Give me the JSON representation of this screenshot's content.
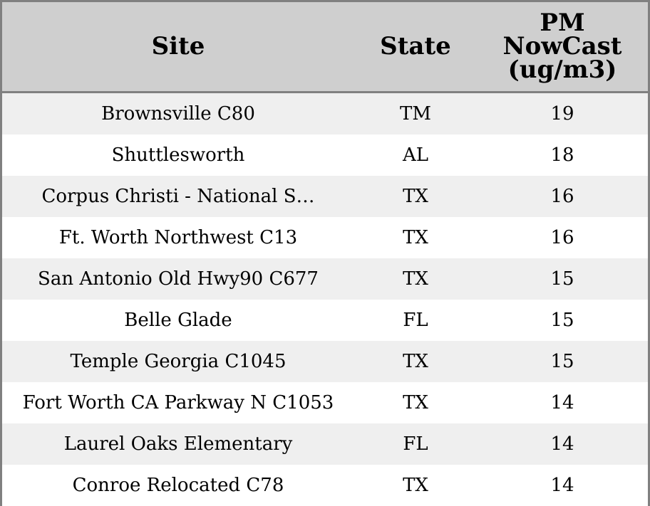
{
  "chart_data": {
    "type": "table",
    "columns": [
      "Site",
      "State",
      "PM\nNowCast\n(ug/m3)"
    ],
    "rows": [
      [
        "Brownsville C80",
        "TM",
        "19"
      ],
      [
        "Shuttlesworth",
        "AL",
        "18"
      ],
      [
        "Corpus Christi - National S…",
        "TX",
        "16"
      ],
      [
        "Ft. Worth Northwest C13",
        "TX",
        "16"
      ],
      [
        "San Antonio Old Hwy90 C677",
        "TX",
        "15"
      ],
      [
        "Belle Glade",
        "FL",
        "15"
      ],
      [
        "Temple Georgia C1045",
        "TX",
        "15"
      ],
      [
        "Fort Worth CA Parkway N C1053",
        "TX",
        "14"
      ],
      [
        "Laurel Oaks Elementary",
        "FL",
        "14"
      ],
      [
        "Conroe Relocated C78",
        "TX",
        "14"
      ]
    ],
    "colors": {
      "header_bg": "#cfcfcf",
      "stripe_bg": "#efefef",
      "border": "#808080"
    }
  }
}
